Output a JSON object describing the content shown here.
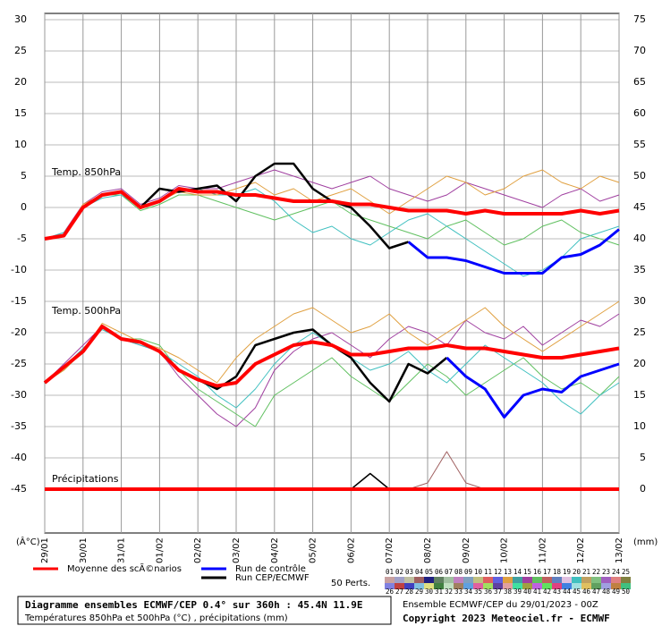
{
  "chart_data": {
    "type": "line",
    "title": "Diagramme ensembles ECMWF/CEP 0.4° sur 360h : 45.4N 11.9E",
    "subtitle": "Températures 850hPa et 500hPa (°C) , précipitations (mm)",
    "run_info": "Ensemble ECMWF/CEP du 29/01/2023 - 00Z",
    "copyright": "Copyright 2023 Meteociel.fr - ECMWF",
    "y_label": "(Â°C)",
    "y2_label": "(mm)",
    "annotations": [
      "Temp. 850hPa",
      "Temp. 500hPa",
      "Précipitations"
    ],
    "perts_label": "50 Perts.",
    "grid": true,
    "x": [
      0,
      0.5,
      1,
      1.5,
      2,
      2.5,
      3,
      3.5,
      4,
      4.5,
      5,
      5.5,
      6,
      6.5,
      7,
      7.5,
      8,
      8.5,
      9,
      9.5,
      10,
      10.5,
      11,
      11.5,
      12,
      12.5,
      13,
      13.5,
      14,
      14.5,
      15
    ],
    "xlim": [
      0,
      15
    ],
    "xticks": [
      {
        "value": 0,
        "label": "29/01"
      },
      {
        "value": 1,
        "label": "30/01"
      },
      {
        "value": 2,
        "label": "31/01"
      },
      {
        "value": 3,
        "label": "01/02"
      },
      {
        "value": 4,
        "label": "02/02"
      },
      {
        "value": 5,
        "label": "03/02"
      },
      {
        "value": 6,
        "label": "04/02"
      },
      {
        "value": 7,
        "label": "05/02"
      },
      {
        "value": 8,
        "label": "06/02"
      },
      {
        "value": 9,
        "label": "07/02"
      },
      {
        "value": 10,
        "label": "08/02"
      },
      {
        "value": 11,
        "label": "09/02"
      },
      {
        "value": 12,
        "label": "10/02"
      },
      {
        "value": 13,
        "label": "11/02"
      },
      {
        "value": 14,
        "label": "12/02"
      },
      {
        "value": 15,
        "label": "13/02"
      }
    ],
    "ylim": [
      -52,
      31
    ],
    "yticks": [
      30,
      25,
      20,
      15,
      10,
      5,
      0,
      -5,
      -10,
      -15,
      -20,
      -25,
      -30,
      -35,
      -40,
      -45
    ],
    "y2lim": [
      -7,
      76
    ],
    "y2ticks": [
      75,
      70,
      65,
      60,
      55,
      50,
      45,
      40,
      35,
      30,
      25,
      20,
      15,
      10,
      5,
      0
    ],
    "series": [
      {
        "name": "Moyenne des scÃ©narios",
        "color": "#ff0000",
        "width": 4,
        "values": [
          -5,
          -4.5,
          0,
          2,
          2.5,
          0,
          1,
          3,
          2.5,
          2.5,
          2,
          2,
          1.5,
          1,
          1,
          1,
          0.5,
          0.5,
          0,
          -0.5,
          -0.5,
          -0.5,
          -1,
          -0.5,
          -1,
          -1,
          -1,
          -1,
          -0.5,
          -1,
          -0.5
        ]
      },
      {
        "name": "Run de contrôle",
        "color": "#0000ff",
        "width": 3,
        "values": [
          null,
          null,
          null,
          null,
          null,
          null,
          null,
          null,
          null,
          null,
          null,
          null,
          null,
          null,
          null,
          null,
          null,
          null,
          null,
          -5.5,
          -8,
          -8,
          -8.5,
          -9.5,
          -10.5,
          -10.5,
          -10.5,
          -8,
          -7.5,
          -6,
          -3.5
        ]
      },
      {
        "name": "Run CEP/ECMWF",
        "color": "#000000",
        "width": 2.5,
        "values": [
          -5,
          -4.5,
          0,
          2,
          2.5,
          0,
          3,
          2.5,
          3,
          3.5,
          1,
          5,
          7,
          7,
          3,
          1,
          0,
          -3,
          -6.5,
          -5.5,
          null,
          null,
          null,
          null,
          null,
          null,
          null,
          null,
          null,
          null,
          null
        ]
      },
      {
        "color": "#ff0000",
        "width": 4,
        "values": [
          -28,
          -25.5,
          -23,
          -19,
          -21,
          -21.5,
          -23,
          -26,
          -27.5,
          -28.5,
          -28,
          -25,
          -23.5,
          -22,
          -21.5,
          -22,
          -23.5,
          -23.5,
          -23,
          -22.5,
          -22.5,
          -22,
          -22.5,
          -22.5,
          -23,
          -23.5,
          -24,
          -24,
          -23.5,
          -23,
          -22.5
        ]
      },
      {
        "color": "#0000ff",
        "width": 3,
        "values": [
          null,
          null,
          null,
          null,
          null,
          null,
          null,
          null,
          null,
          null,
          null,
          null,
          null,
          null,
          null,
          null,
          null,
          null,
          null,
          null,
          null,
          -24,
          -27,
          -29,
          -33.5,
          -30,
          -29,
          -29.5,
          -27,
          -26,
          -25
        ]
      },
      {
        "color": "#000000",
        "width": 2.5,
        "values": [
          -28,
          -25.5,
          -23,
          -19,
          -21,
          -21.5,
          -23,
          -26,
          -27.5,
          -29,
          -27,
          -22,
          -21,
          -20,
          -19.5,
          -22,
          -24,
          -28,
          -31,
          -25,
          -26.5,
          -24,
          null,
          null,
          null,
          null,
          null,
          null,
          null,
          null,
          null
        ]
      },
      {
        "color": "#ff0000",
        "width": 4,
        "axis": "y2",
        "values": [
          0,
          0,
          0,
          0,
          0,
          0,
          0,
          0,
          0,
          0,
          0,
          0,
          0,
          0,
          0,
          0,
          0,
          0,
          0,
          0,
          0,
          0,
          0,
          0,
          0,
          0,
          0,
          0,
          0,
          0,
          0
        ]
      },
      {
        "color": "#000000",
        "width": 1.5,
        "axis": "y2",
        "values": [
          0,
          0,
          0,
          0,
          0,
          0,
          0,
          0,
          0,
          0,
          0,
          0,
          0,
          0,
          0,
          0,
          0,
          2.5,
          0,
          0,
          0,
          0,
          null,
          null,
          null,
          null,
          null,
          null,
          null,
          null,
          null
        ]
      },
      {
        "color": "#a040a0",
        "width": 1,
        "values": [
          -5,
          -4,
          0.5,
          2.5,
          3,
          0.5,
          1.5,
          3.5,
          3,
          3,
          4,
          5,
          6,
          5,
          4,
          3,
          4,
          5,
          3,
          2,
          1,
          2,
          4,
          3,
          2,
          1,
          0,
          2,
          3,
          1,
          2
        ]
      },
      {
        "color": "#60c060",
        "width": 1,
        "values": [
          -5,
          -4.5,
          0,
          2,
          2,
          -0.5,
          0.5,
          2,
          2,
          1,
          0,
          -1,
          -2,
          -1,
          0,
          1,
          -1,
          -2,
          -3,
          -4,
          -5,
          -3,
          -2,
          -4,
          -6,
          -5,
          -3,
          -2,
          -4,
          -5,
          -6
        ]
      },
      {
        "color": "#40c0c0",
        "width": 1,
        "values": [
          -5,
          -4,
          0,
          1.5,
          2,
          0,
          1,
          3,
          3,
          2,
          2,
          3,
          1,
          -2,
          -4,
          -3,
          -5,
          -6,
          -4,
          -2,
          -1,
          -3,
          -5,
          -7,
          -9,
          -11,
          -10,
          -8,
          -5,
          -4,
          -3
        ]
      },
      {
        "color": "#e0a040",
        "width": 1,
        "values": [
          -5,
          -4.5,
          0.5,
          2,
          2.5,
          0,
          1,
          2.5,
          2,
          2,
          3,
          4,
          2,
          3,
          1,
          2,
          3,
          1,
          -1,
          1,
          3,
          5,
          4,
          2,
          3,
          5,
          6,
          4,
          3,
          5,
          4
        ]
      },
      {
        "color": "#a040a0",
        "width": 1,
        "values": [
          -28,
          -25,
          -22,
          -19,
          -21,
          -22,
          -23,
          -27,
          -30,
          -33,
          -35,
          -32,
          -26,
          -23,
          -21,
          -20,
          -22,
          -24,
          -21,
          -19,
          -20,
          -22,
          -18,
          -20,
          -21,
          -19,
          -22,
          -20,
          -18,
          -19,
          -17
        ]
      },
      {
        "color": "#60c060",
        "width": 1,
        "values": [
          -28,
          -26,
          -23,
          -19,
          -21,
          -21,
          -22,
          -26,
          -29,
          -31,
          -33,
          -35,
          -30,
          -28,
          -26,
          -24,
          -27,
          -29,
          -31,
          -28,
          -25,
          -27,
          -30,
          -28,
          -26,
          -24,
          -27,
          -29,
          -28,
          -30,
          -27
        ]
      },
      {
        "color": "#40c0c0",
        "width": 1,
        "values": [
          -28,
          -25.5,
          -22.5,
          -19.5,
          -21,
          -22,
          -23,
          -25,
          -27,
          -30,
          -32,
          -29,
          -25,
          -22,
          -20,
          -22,
          -24,
          -26,
          -25,
          -23,
          -26,
          -28,
          -25,
          -22,
          -24,
          -26,
          -28,
          -31,
          -33,
          -30,
          -28
        ]
      },
      {
        "color": "#e0a040",
        "width": 1,
        "values": [
          -28,
          -26,
          -23,
          -18.5,
          -20,
          -21.5,
          -22.5,
          -24,
          -26,
          -28,
          -24,
          -21,
          -19,
          -17,
          -16,
          -18,
          -20,
          -19,
          -17,
          -20,
          -22,
          -20,
          -18,
          -16,
          -19,
          -21,
          -23,
          -21,
          -19,
          -17,
          -15
        ]
      },
      {
        "color": "#a06060",
        "width": 1,
        "axis": "y2",
        "values": [
          0,
          0,
          0,
          0,
          0,
          0,
          0,
          0,
          0,
          0,
          0,
          0,
          0,
          0,
          0,
          0,
          0,
          0,
          0,
          0,
          1,
          6,
          1,
          0,
          0,
          0,
          0,
          0,
          0,
          0,
          0
        ]
      }
    ],
    "members": [
      {
        "label": "01",
        "color": "#c8a0a0"
      },
      {
        "label": "02",
        "color": "#a0a0c8"
      },
      {
        "label": "03",
        "color": "#c0c0a0"
      },
      {
        "label": "04",
        "color": "#a06060"
      },
      {
        "label": "05",
        "color": "#202080"
      },
      {
        "label": "06",
        "color": "#608060"
      },
      {
        "label": "07",
        "color": "#a0c0a0"
      },
      {
        "label": "08",
        "color": "#c080c0"
      },
      {
        "label": "09",
        "color": "#80a0c0"
      },
      {
        "label": "10",
        "color": "#c0c080"
      },
      {
        "label": "11",
        "color": "#e06060"
      },
      {
        "label": "12",
        "color": "#6060e0"
      },
      {
        "label": "13",
        "color": "#e0a040"
      },
      {
        "label": "14",
        "color": "#40a0a0"
      },
      {
        "label": "15",
        "color": "#a040a0"
      },
      {
        "label": "16",
        "color": "#60c060"
      },
      {
        "label": "17",
        "color": "#c06060"
      },
      {
        "label": "18",
        "color": "#6080c0"
      },
      {
        "label": "19",
        "color": "#e0c0e0"
      },
      {
        "label": "20",
        "color": "#40c0c0"
      },
      {
        "label": "21",
        "color": "#c0a060"
      },
      {
        "label": "22",
        "color": "#80c080"
      },
      {
        "label": "23",
        "color": "#a060c0"
      },
      {
        "label": "24",
        "color": "#e08080"
      },
      {
        "label": "25",
        "color": "#808040"
      },
      {
        "label": "26",
        "color": "#8080e0"
      },
      {
        "label": "27",
        "color": "#c04040"
      },
      {
        "label": "28",
        "color": "#4040c0"
      },
      {
        "label": "29",
        "color": "#80c0e0"
      },
      {
        "label": "30",
        "color": "#e0e080"
      },
      {
        "label": "31",
        "color": "#408040"
      },
      {
        "label": "32",
        "color": "#c0e0c0"
      },
      {
        "label": "33",
        "color": "#a08060"
      },
      {
        "label": "34",
        "color": "#60a0e0"
      },
      {
        "label": "35",
        "color": "#e060a0"
      },
      {
        "label": "36",
        "color": "#a0e060"
      },
      {
        "label": "37",
        "color": "#6040a0"
      },
      {
        "label": "38",
        "color": "#e0a0a0"
      },
      {
        "label": "39",
        "color": "#40e0a0"
      },
      {
        "label": "40",
        "color": "#a0a040"
      },
      {
        "label": "41",
        "color": "#c060e0"
      },
      {
        "label": "42",
        "color": "#60e060"
      },
      {
        "label": "43",
        "color": "#e04080"
      },
      {
        "label": "44",
        "color": "#4080e0"
      },
      {
        "label": "45",
        "color": "#a0e0e0"
      },
      {
        "label": "46",
        "color": "#e0c060"
      },
      {
        "label": "47",
        "color": "#60a060"
      },
      {
        "label": "48",
        "color": "#a0a0e0"
      },
      {
        "label": "49",
        "color": "#c08040"
      },
      {
        "label": "50",
        "color": "#40c080"
      }
    ]
  }
}
